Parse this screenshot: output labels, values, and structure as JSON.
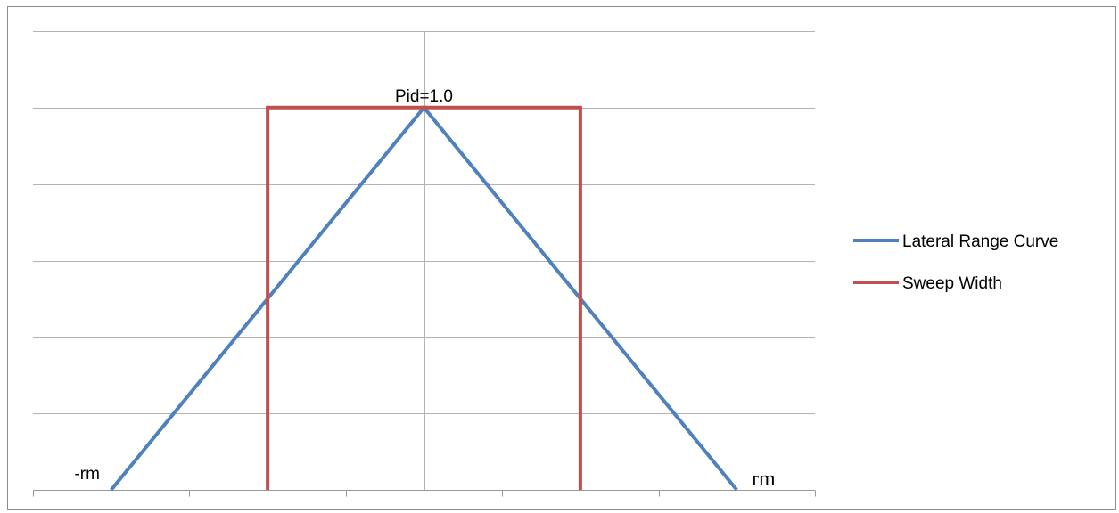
{
  "chart_data": {
    "type": "line",
    "title": "",
    "xlabel": "",
    "ylabel": "",
    "xlim": [
      -5,
      5
    ],
    "ylim": [
      0,
      1.2
    ],
    "x_ticks": [
      -5,
      -3,
      -1,
      1,
      3,
      5
    ],
    "y_gridlines": [
      0.2,
      0.4,
      0.6,
      0.8,
      1.0,
      1.2
    ],
    "grid": true,
    "legend_position": "right",
    "series": [
      {
        "name": "Lateral Range Curve",
        "color": "#4f81bd",
        "x": [
          -4,
          0,
          4
        ],
        "y": [
          0,
          1.0,
          0
        ]
      },
      {
        "name": "Sweep Width",
        "color": "#c0504d",
        "x": [
          -2,
          -2,
          2,
          2
        ],
        "y": [
          0,
          1.0,
          1.0,
          0
        ]
      }
    ],
    "annotations": [
      {
        "text": "Pid=1.0",
        "x": 0,
        "y": 1.0,
        "style": "sans"
      },
      {
        "text": "-rm",
        "x": -4,
        "y": 0,
        "style": "sans"
      },
      {
        "text": "rm",
        "x": 4,
        "y": 0,
        "style": "serif"
      }
    ]
  }
}
